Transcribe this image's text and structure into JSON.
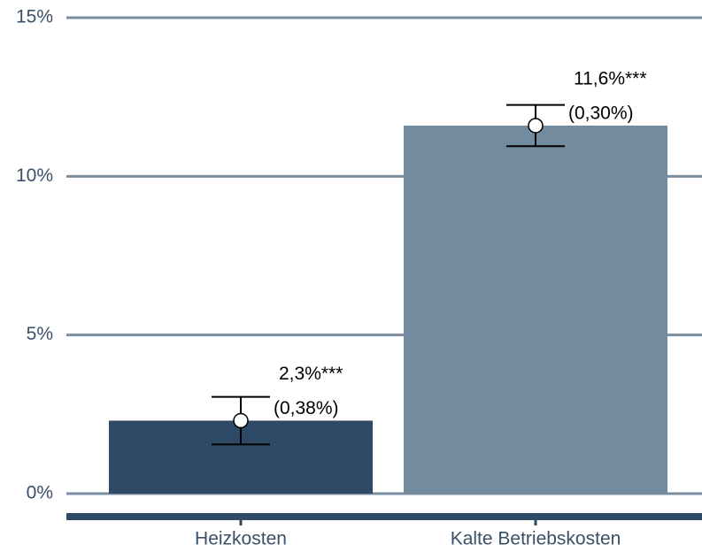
{
  "chart_data": {
    "type": "bar",
    "categories": [
      "Heizkosten",
      "Kalte Betriebskosten"
    ],
    "values": [
      2.3,
      11.6
    ],
    "value_labels": [
      "2,3%***",
      "11,6%***"
    ],
    "error_low": [
      1.55,
      10.95
    ],
    "error_high": [
      3.05,
      12.25
    ],
    "se_values": [
      0.38,
      0.3
    ],
    "se_labels": [
      "(0,38%)",
      "(0,30%)"
    ],
    "colors": [
      "#2e4a66",
      "#738b9f"
    ],
    "ylim": [
      0,
      15
    ],
    "yticks": [
      {
        "value": 0,
        "label": "0%"
      },
      {
        "value": 5,
        "label": "5%"
      },
      {
        "value": 10,
        "label": "10%"
      },
      {
        "value": 15,
        "label": "15%"
      }
    ],
    "grid": true
  }
}
